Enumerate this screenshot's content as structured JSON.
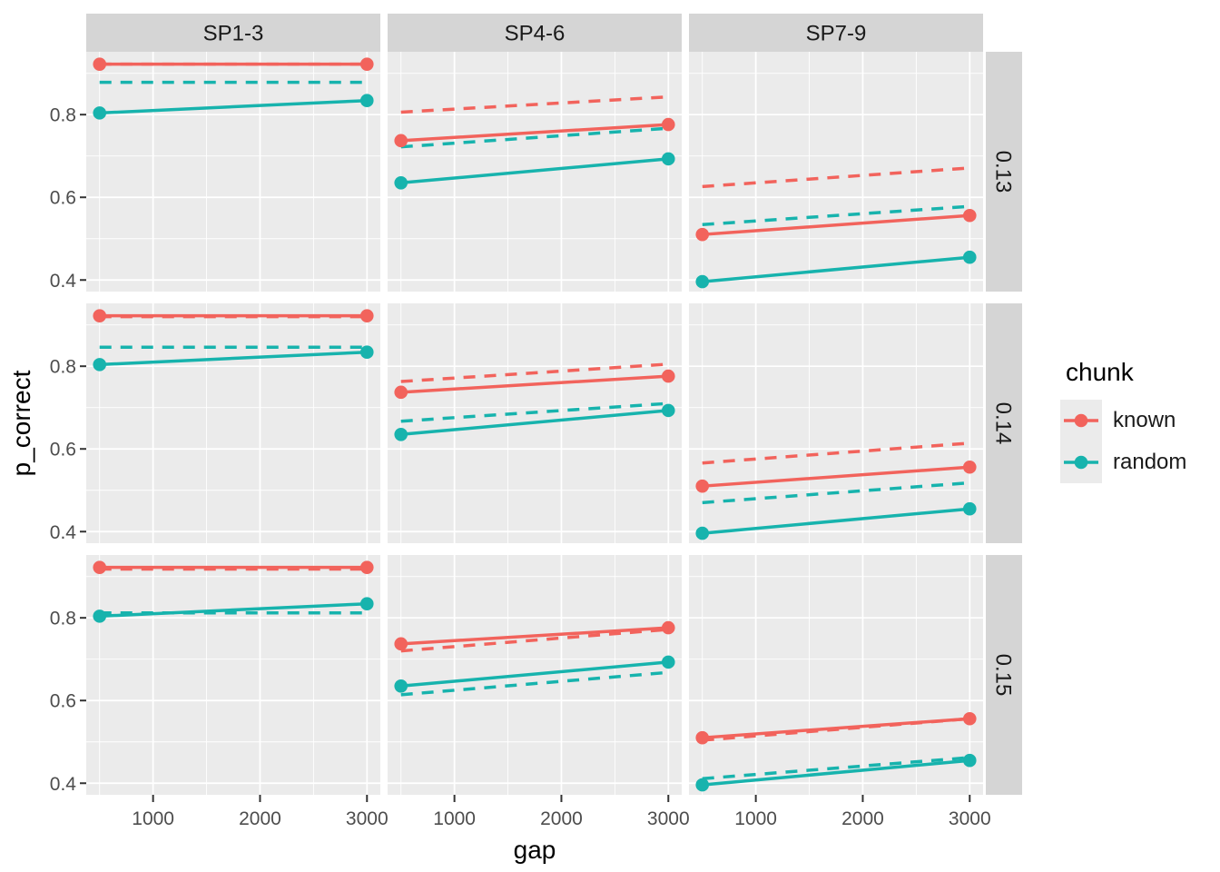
{
  "axes": {
    "x_label": "gap",
    "y_label": "p_correct"
  },
  "facets": {
    "col_labels": [
      "SP1-3",
      "SP4-6",
      "SP7-9"
    ],
    "row_labels": [
      "0.13",
      "0.14",
      "0.15"
    ]
  },
  "legend": {
    "title": "chunk",
    "items": [
      {
        "label": "known",
        "color": "#F2635C"
      },
      {
        "label": "random",
        "color": "#17B3AD"
      }
    ]
  },
  "colors": {
    "known": "#F2635C",
    "random": "#17B3AD",
    "panel_bg": "#EBEBEB",
    "strip_bg": "#D5D5D5",
    "grid": "#FFFFFF",
    "tick_text": "#4D4D4D",
    "tick_mark": "#333333",
    "strip_text": "#1A1A1A"
  },
  "chart_data": {
    "type": "line",
    "x": [
      500,
      3000
    ],
    "xlim": [
      375,
      3125
    ],
    "ylim": [
      0.372,
      0.952
    ],
    "x_ticks": [
      1000,
      2000,
      3000
    ],
    "y_ticks": [
      0.4,
      0.6,
      0.8
    ],
    "x_minor_ticks": [
      500,
      1500,
      2500
    ],
    "y_minor_ticks": [
      0.5,
      0.7,
      0.9
    ],
    "title": "",
    "xlabel": "gap",
    "ylabel": "p_correct",
    "legend_position": "right",
    "grid": true,
    "panels": [
      {
        "row": "0.13",
        "col": "SP1-3",
        "series": [
          {
            "chunk": "known",
            "linetype": "dashed",
            "points": false,
            "y": [
              0.922,
              0.922
            ]
          },
          {
            "chunk": "random",
            "linetype": "dashed",
            "points": false,
            "y": [
              0.878,
              0.878
            ]
          },
          {
            "chunk": "known",
            "linetype": "solid",
            "points": true,
            "y": [
              0.922,
              0.922
            ]
          },
          {
            "chunk": "random",
            "linetype": "solid",
            "points": true,
            "y": [
              0.804,
              0.834
            ]
          }
        ]
      },
      {
        "row": "0.13",
        "col": "SP4-6",
        "series": [
          {
            "chunk": "known",
            "linetype": "dashed",
            "points": false,
            "y": [
              0.806,
              0.843
            ]
          },
          {
            "chunk": "random",
            "linetype": "dashed",
            "points": false,
            "y": [
              0.722,
              0.767
            ]
          },
          {
            "chunk": "known",
            "linetype": "solid",
            "points": true,
            "y": [
              0.737,
              0.776
            ]
          },
          {
            "chunk": "random",
            "linetype": "solid",
            "points": true,
            "y": [
              0.635,
              0.693
            ]
          }
        ]
      },
      {
        "row": "0.13",
        "col": "SP7-9",
        "series": [
          {
            "chunk": "known",
            "linetype": "dashed",
            "points": false,
            "y": [
              0.626,
              0.671
            ]
          },
          {
            "chunk": "random",
            "linetype": "dashed",
            "points": false,
            "y": [
              0.534,
              0.578
            ]
          },
          {
            "chunk": "known",
            "linetype": "solid",
            "points": true,
            "y": [
              0.51,
              0.556
            ]
          },
          {
            "chunk": "random",
            "linetype": "solid",
            "points": true,
            "y": [
              0.396,
              0.455
            ]
          }
        ]
      },
      {
        "row": "0.14",
        "col": "SP1-3",
        "series": [
          {
            "chunk": "known",
            "linetype": "dashed",
            "points": false,
            "y": [
              0.92,
              0.92
            ]
          },
          {
            "chunk": "random",
            "linetype": "dashed",
            "points": false,
            "y": [
              0.846,
              0.846
            ]
          },
          {
            "chunk": "known",
            "linetype": "solid",
            "points": true,
            "y": [
              0.922,
              0.922
            ]
          },
          {
            "chunk": "random",
            "linetype": "solid",
            "points": true,
            "y": [
              0.804,
              0.834
            ]
          }
        ]
      },
      {
        "row": "0.14",
        "col": "SP4-6",
        "series": [
          {
            "chunk": "known",
            "linetype": "dashed",
            "points": false,
            "y": [
              0.763,
              0.805
            ]
          },
          {
            "chunk": "random",
            "linetype": "dashed",
            "points": false,
            "y": [
              0.667,
              0.71
            ]
          },
          {
            "chunk": "known",
            "linetype": "solid",
            "points": true,
            "y": [
              0.737,
              0.776
            ]
          },
          {
            "chunk": "random",
            "linetype": "solid",
            "points": true,
            "y": [
              0.635,
              0.693
            ]
          }
        ]
      },
      {
        "row": "0.14",
        "col": "SP7-9",
        "series": [
          {
            "chunk": "known",
            "linetype": "dashed",
            "points": false,
            "y": [
              0.566,
              0.614
            ]
          },
          {
            "chunk": "random",
            "linetype": "dashed",
            "points": false,
            "y": [
              0.47,
              0.518
            ]
          },
          {
            "chunk": "known",
            "linetype": "solid",
            "points": true,
            "y": [
              0.51,
              0.556
            ]
          },
          {
            "chunk": "random",
            "linetype": "solid",
            "points": true,
            "y": [
              0.396,
              0.455
            ]
          }
        ]
      },
      {
        "row": "0.15",
        "col": "SP1-3",
        "series": [
          {
            "chunk": "known",
            "linetype": "dashed",
            "points": false,
            "y": [
              0.918,
              0.918
            ]
          },
          {
            "chunk": "random",
            "linetype": "dashed",
            "points": false,
            "y": [
              0.812,
              0.812
            ]
          },
          {
            "chunk": "known",
            "linetype": "solid",
            "points": true,
            "y": [
              0.922,
              0.922
            ]
          },
          {
            "chunk": "random",
            "linetype": "solid",
            "points": true,
            "y": [
              0.804,
              0.834
            ]
          }
        ]
      },
      {
        "row": "0.15",
        "col": "SP4-6",
        "series": [
          {
            "chunk": "known",
            "linetype": "dashed",
            "points": false,
            "y": [
              0.72,
              0.772
            ]
          },
          {
            "chunk": "random",
            "linetype": "dashed",
            "points": false,
            "y": [
              0.614,
              0.668
            ]
          },
          {
            "chunk": "known",
            "linetype": "solid",
            "points": true,
            "y": [
              0.737,
              0.776
            ]
          },
          {
            "chunk": "random",
            "linetype": "solid",
            "points": true,
            "y": [
              0.635,
              0.693
            ]
          }
        ]
      },
      {
        "row": "0.15",
        "col": "SP7-9",
        "series": [
          {
            "chunk": "known",
            "linetype": "dashed",
            "points": false,
            "y": [
              0.504,
              0.556
            ]
          },
          {
            "chunk": "random",
            "linetype": "dashed",
            "points": false,
            "y": [
              0.411,
              0.462
            ]
          },
          {
            "chunk": "known",
            "linetype": "solid",
            "points": true,
            "y": [
              0.51,
              0.556
            ]
          },
          {
            "chunk": "random",
            "linetype": "solid",
            "points": true,
            "y": [
              0.396,
              0.455
            ]
          }
        ]
      }
    ]
  }
}
